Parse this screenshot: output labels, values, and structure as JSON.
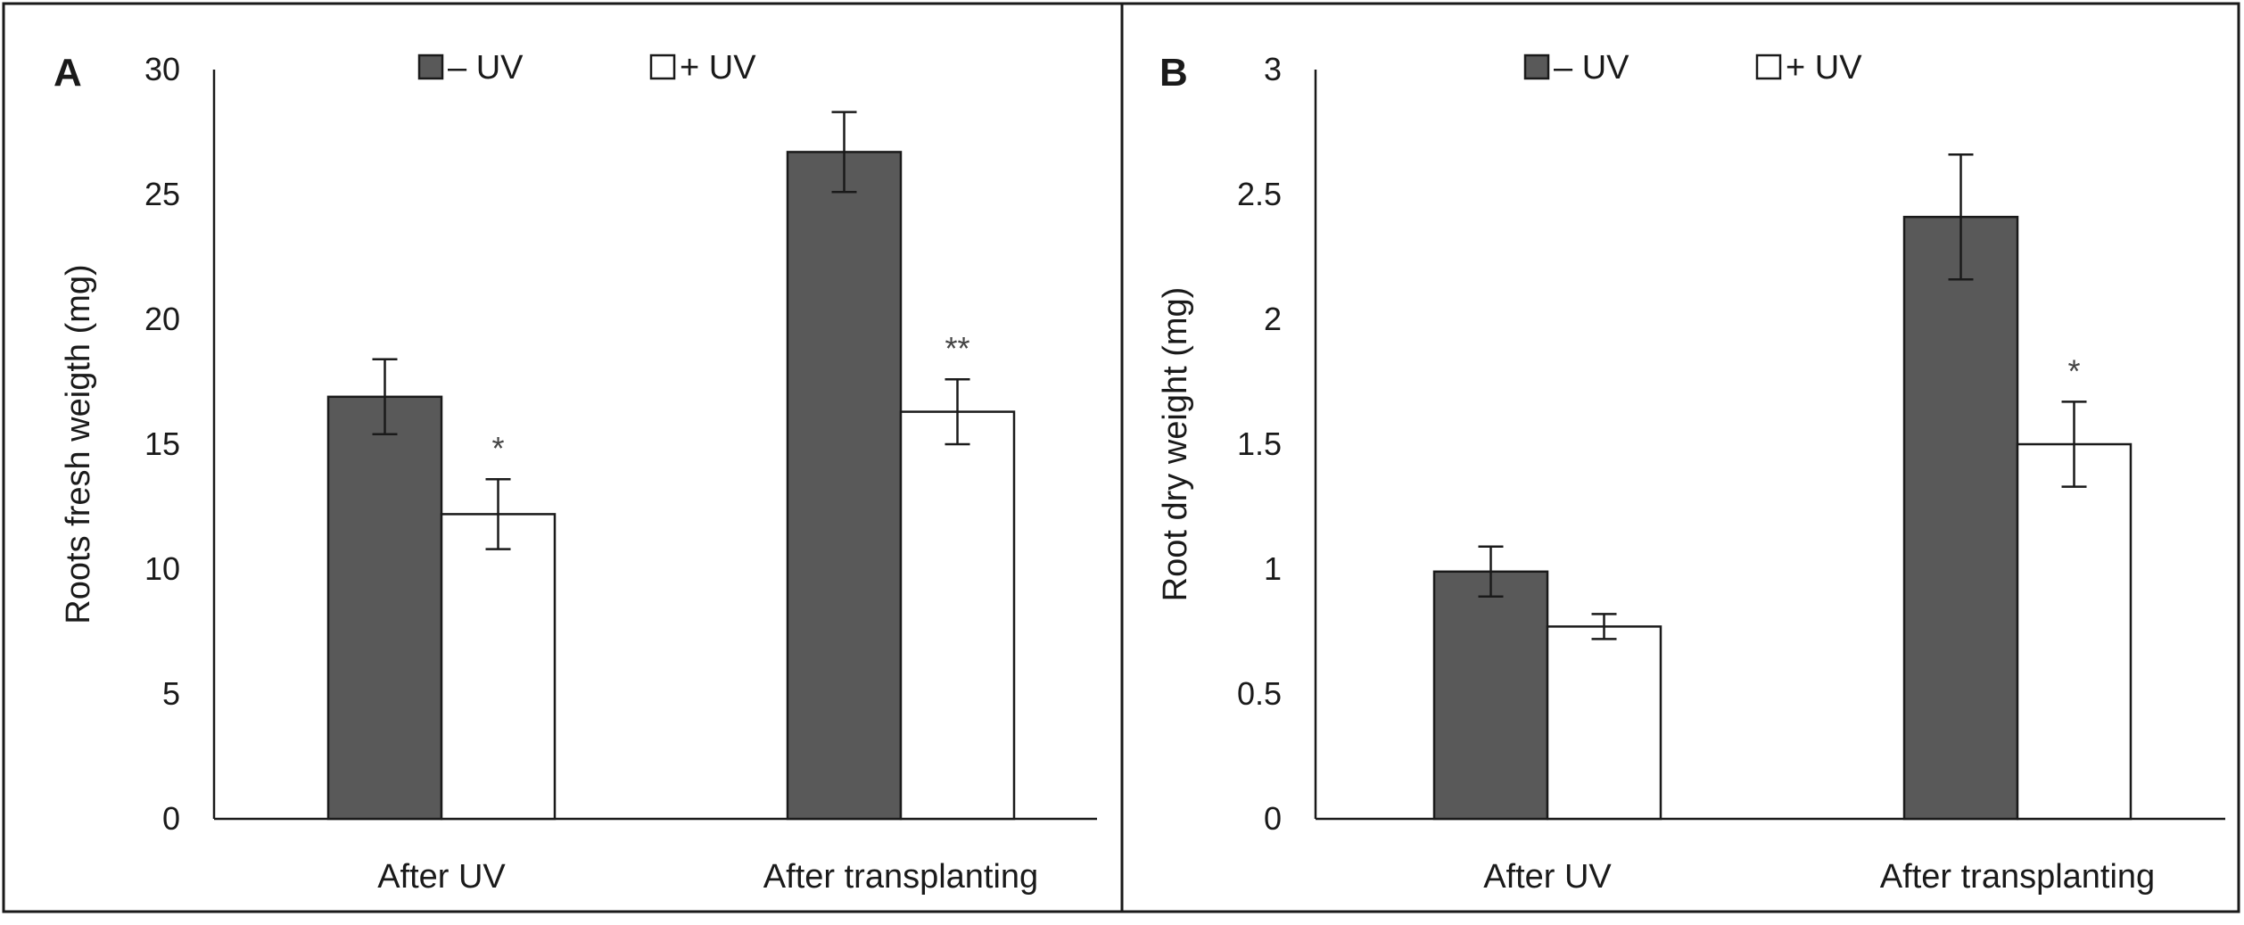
{
  "colors": {
    "minus_uv": "#595959",
    "plus_uv": "#ffffff",
    "bar_stroke": "#1a1a1a",
    "axis": "#1a1a1a"
  },
  "chart_data": [
    {
      "panel_label": "A",
      "type": "bar",
      "categories": [
        "After UV",
        "After transplanting"
      ],
      "series": [
        {
          "name": "– UV",
          "values": [
            16.9,
            26.7
          ],
          "errors": [
            1.5,
            1.6
          ],
          "significance": [
            "",
            ""
          ]
        },
        {
          "name": "+ UV",
          "values": [
            12.2,
            16.3
          ],
          "errors": [
            1.4,
            1.3
          ],
          "significance": [
            "*",
            "**"
          ]
        }
      ],
      "ylabel": "Roots fresh weigth (mg)",
      "xlabel": "",
      "ylim": [
        0,
        30
      ],
      "yticks": [
        "0",
        "5",
        "10",
        "15",
        "20",
        "25",
        "30"
      ],
      "ytick_values": [
        0,
        5,
        10,
        15,
        20,
        25,
        30
      ],
      "legend_position": "top-center",
      "grid": false
    },
    {
      "panel_label": "B",
      "type": "bar",
      "categories": [
        "After UV",
        "After transplanting"
      ],
      "series": [
        {
          "name": "– UV",
          "values": [
            0.99,
            2.41
          ],
          "errors": [
            0.1,
            0.25
          ],
          "significance": [
            "",
            ""
          ]
        },
        {
          "name": "+ UV",
          "values": [
            0.77,
            1.5
          ],
          "errors": [
            0.05,
            0.17
          ],
          "significance": [
            "",
            "*"
          ]
        }
      ],
      "ylabel": "Root dry weight (mg)",
      "xlabel": "",
      "ylim": [
        0,
        3
      ],
      "yticks": [
        "0",
        "0.5",
        "1",
        "1.5",
        "2",
        "2.5",
        "3"
      ],
      "ytick_values": [
        0,
        0.5,
        1,
        1.5,
        2,
        2.5,
        3
      ],
      "legend_position": "top-center",
      "grid": false
    }
  ]
}
